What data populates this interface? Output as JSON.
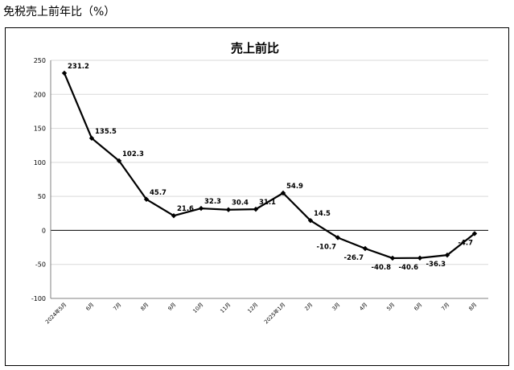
{
  "page": {
    "heading": "免税売上前年比（%）"
  },
  "chart_data": {
    "type": "line",
    "title": "売上前比",
    "xlabel": "",
    "ylabel": "",
    "categories": [
      "2024年5月",
      "6月",
      "7月",
      "8月",
      "9月",
      "10月",
      "11月",
      "12月",
      "2025年1月",
      "2月",
      "3月",
      "4月",
      "5月",
      "6月",
      "7月",
      "8月"
    ],
    "series": [
      {
        "values": [
          231.2,
          135.5,
          102.3,
          45.7,
          21.6,
          32.3,
          30.4,
          31.1,
          54.9,
          14.5,
          -10.7,
          -26.7,
          -40.8,
          -40.6,
          -36.3,
          -4.7
        ]
      }
    ],
    "data_labels": [
      "231.2",
      "135.5",
      "102.3",
      "45.7",
      "21.6",
      "32.3",
      "30.4",
      "31.1",
      "54.9",
      "14.5",
      "-10.7",
      "-26.7",
      "-40.8",
      "-40.6",
      "-36.3",
      "-4.7"
    ],
    "ylim": [
      -100,
      250
    ],
    "yticks": [
      -100,
      -50,
      0,
      50,
      100,
      150,
      200,
      250
    ],
    "grid": true,
    "legend": "none",
    "colors": {
      "line": "#000000",
      "grid": "#d9d9d9",
      "zero_line": "#000000"
    }
  }
}
